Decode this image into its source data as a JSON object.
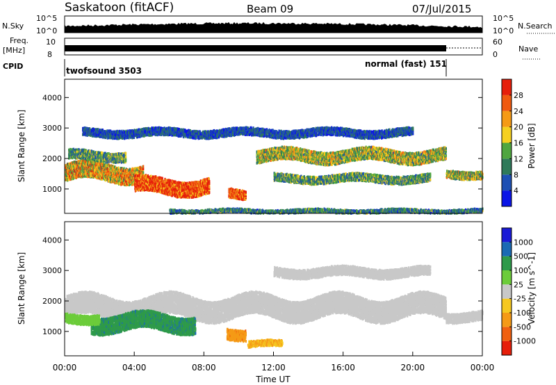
{
  "header": {
    "station": "Saskatoon (fitACF)",
    "beam": "Beam 09",
    "date": "07/Jul/2015"
  },
  "status_panels": {
    "nsky_label": "N.Sky",
    "nsky_ticks": [
      "10^5",
      "10^0"
    ],
    "nsearch_label": "N.Search",
    "nsearch_ticks": [
      "10^5",
      "10^0"
    ],
    "freq_label_line1": "Freq.",
    "freq_label_line2": "[MHz]",
    "freq_ticks": [
      "10",
      "8"
    ],
    "nave_label": "Nave",
    "nave_ticks": [
      "60",
      "0"
    ],
    "cpid_label": "CPID",
    "cpid_modes": [
      {
        "name": "twofsound 3503",
        "start_hour": 0,
        "end_hour": 21.9
      },
      {
        "name": "normal (fast) 151",
        "start_hour": 21.9,
        "end_hour": 24
      }
    ]
  },
  "chart_data": [
    {
      "type": "heatmap",
      "panel": "power",
      "ylabel": "Slant Range [km]",
      "y_ticks": [
        "1000",
        "2000",
        "3000",
        "4000"
      ],
      "ylim": [
        200,
        4600
      ],
      "xlim": [
        0,
        24
      ],
      "colorbar_label": "Power [dB]",
      "colorbar_ticks": [
        "4",
        "8",
        "12",
        "16",
        "20",
        "24",
        "28"
      ],
      "colorbar_range": [
        0,
        32
      ],
      "colors": [
        "#0a14e6",
        "#1e50b4",
        "#2f7a5a",
        "#4fa640",
        "#f5d020",
        "#f59a16",
        "#f05a10",
        "#e61e0a"
      ],
      "echo_bands": [
        {
          "start_hour": 0.0,
          "end_hour": 4.5,
          "range_km": 1600,
          "width_km": 550,
          "value": 20
        },
        {
          "start_hour": 0.2,
          "end_hour": 3.5,
          "range_km": 2150,
          "width_km": 300,
          "value": 12
        },
        {
          "start_hour": 4.0,
          "end_hour": 8.3,
          "range_km": 1150,
          "width_km": 500,
          "value": 30
        },
        {
          "start_hour": 9.4,
          "end_hour": 10.4,
          "range_km": 900,
          "width_km": 300,
          "value": 28
        },
        {
          "start_hour": 11.0,
          "end_hour": 21.9,
          "range_km": 2150,
          "width_km": 400,
          "value": 16
        },
        {
          "start_hour": 12.0,
          "end_hour": 21.0,
          "range_km": 1400,
          "width_km": 250,
          "value": 12
        },
        {
          "start_hour": 21.9,
          "end_hour": 24.0,
          "range_km": 1550,
          "width_km": 250,
          "value": 16
        },
        {
          "start_hour": 1.0,
          "end_hour": 20.0,
          "range_km": 2900,
          "width_km": 250,
          "value": 6
        },
        {
          "start_hour": 6.0,
          "end_hour": 24.0,
          "range_km": 330,
          "width_km": 120,
          "value": 10
        }
      ]
    },
    {
      "type": "heatmap",
      "panel": "velocity",
      "ylabel": "Slant Range [km]",
      "y_ticks": [
        "1000",
        "2000",
        "3000",
        "4000"
      ],
      "ylim": [
        200,
        4600
      ],
      "xlim": [
        0,
        24
      ],
      "xlabel": "Time UT",
      "x_ticks": [
        "00:00",
        "04:00",
        "08:00",
        "12:00",
        "16:00",
        "20:00",
        "00:00"
      ],
      "colorbar_label": "Velocity [m s^-1]",
      "colorbar_ticks": [
        "1000",
        "500",
        "100",
        "25",
        "-25",
        "-100",
        "-500",
        "-1000"
      ],
      "colors": [
        "#1a1ad6",
        "#1a6ab4",
        "#2e9a4a",
        "#6ccc3a",
        "#c8c8c8",
        "#f5c820",
        "#f59a16",
        "#f06010",
        "#e61e0a"
      ],
      "echo_bands": [
        {
          "start_hour": 0.0,
          "end_hour": 21.9,
          "range_km": 1850,
          "width_km": 700,
          "value": 0
        },
        {
          "start_hour": 21.9,
          "end_hour": 24.0,
          "range_km": 1550,
          "width_km": 300,
          "value": 0
        },
        {
          "start_hour": 1.5,
          "end_hour": 7.5,
          "range_km": 1350,
          "width_km": 550,
          "value": 400
        },
        {
          "start_hour": 0.0,
          "end_hour": 2.0,
          "range_km": 1500,
          "width_km": 300,
          "value": 60
        },
        {
          "start_hour": 9.3,
          "end_hour": 10.4,
          "range_km": 1000,
          "width_km": 350,
          "value": -400
        },
        {
          "start_hour": 10.5,
          "end_hour": 12.5,
          "range_km": 650,
          "width_km": 200,
          "value": -100
        },
        {
          "start_hour": 12.0,
          "end_hour": 21.0,
          "range_km": 3000,
          "width_km": 300,
          "value": 0
        }
      ]
    }
  ]
}
